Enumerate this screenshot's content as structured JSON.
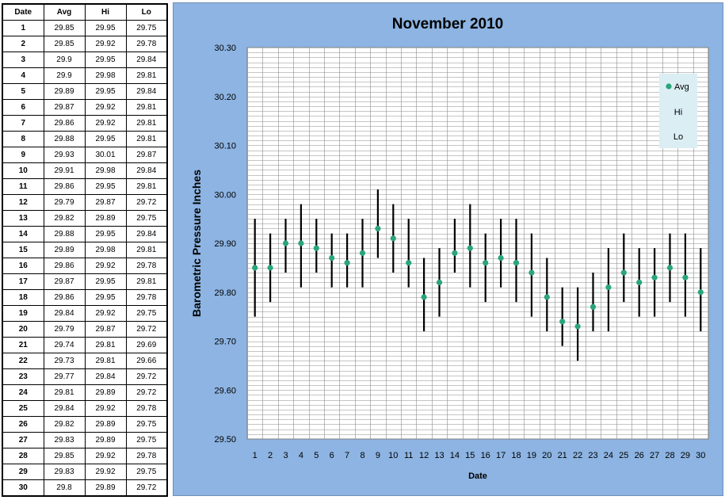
{
  "table": {
    "headers": [
      "Date",
      "Avg",
      "Hi",
      "Lo"
    ],
    "rows": [
      [
        "1",
        "29.85",
        "29.95",
        "29.75"
      ],
      [
        "2",
        "29.85",
        "29.92",
        "29.78"
      ],
      [
        "3",
        "29.9",
        "29.95",
        "29.84"
      ],
      [
        "4",
        "29.9",
        "29.98",
        "29.81"
      ],
      [
        "5",
        "29.89",
        "29.95",
        "29.84"
      ],
      [
        "6",
        "29.87",
        "29.92",
        "29.81"
      ],
      [
        "7",
        "29.86",
        "29.92",
        "29.81"
      ],
      [
        "8",
        "29.88",
        "29.95",
        "29.81"
      ],
      [
        "9",
        "29.93",
        "30.01",
        "29.87"
      ],
      [
        "10",
        "29.91",
        "29.98",
        "29.84"
      ],
      [
        "11",
        "29.86",
        "29.95",
        "29.81"
      ],
      [
        "12",
        "29.79",
        "29.87",
        "29.72"
      ],
      [
        "13",
        "29.82",
        "29.89",
        "29.75"
      ],
      [
        "14",
        "29.88",
        "29.95",
        "29.84"
      ],
      [
        "15",
        "29.89",
        "29.98",
        "29.81"
      ],
      [
        "16",
        "29.86",
        "29.92",
        "29.78"
      ],
      [
        "17",
        "29.87",
        "29.95",
        "29.81"
      ],
      [
        "18",
        "29.86",
        "29.95",
        "29.78"
      ],
      [
        "19",
        "29.84",
        "29.92",
        "29.75"
      ],
      [
        "20",
        "29.79",
        "29.87",
        "29.72"
      ],
      [
        "21",
        "29.74",
        "29.81",
        "29.69"
      ],
      [
        "22",
        "29.73",
        "29.81",
        "29.66"
      ],
      [
        "23",
        "29.77",
        "29.84",
        "29.72"
      ],
      [
        "24",
        "29.81",
        "29.89",
        "29.72"
      ],
      [
        "25",
        "29.84",
        "29.92",
        "29.78"
      ],
      [
        "26",
        "29.82",
        "29.89",
        "29.75"
      ],
      [
        "27",
        "29.83",
        "29.89",
        "29.75"
      ],
      [
        "28",
        "29.85",
        "29.92",
        "29.78"
      ],
      [
        "29",
        "29.83",
        "29.92",
        "29.75"
      ],
      [
        "30",
        "29.8",
        "29.89",
        "29.72"
      ]
    ]
  },
  "chart_data": {
    "type": "scatter",
    "title": "November 2010",
    "xlabel": "Date",
    "ylabel": "Barometric Pressure Inches",
    "x": [
      1,
      2,
      3,
      4,
      5,
      6,
      7,
      8,
      9,
      10,
      11,
      12,
      13,
      14,
      15,
      16,
      17,
      18,
      19,
      20,
      21,
      22,
      23,
      24,
      25,
      26,
      27,
      28,
      29,
      30
    ],
    "xticks": [
      "1",
      "2",
      "3",
      "4",
      "5",
      "6",
      "7",
      "8",
      "9",
      "10",
      "11",
      "12",
      "13",
      "14",
      "15",
      "16",
      "17",
      "18",
      "19",
      "20",
      "21",
      "22",
      "23",
      "24",
      "25",
      "26",
      "27",
      "28",
      "29",
      "30"
    ],
    "yticks": [
      "29.50",
      "29.60",
      "29.70",
      "29.80",
      "29.90",
      "30.00",
      "30.10",
      "30.20",
      "30.30"
    ],
    "ylim": [
      29.5,
      30.3
    ],
    "grid": true,
    "legend_position": "top-right",
    "series": [
      {
        "name": "Avg",
        "color": "#2aa57a",
        "values": [
          29.85,
          29.85,
          29.9,
          29.9,
          29.89,
          29.87,
          29.86,
          29.88,
          29.93,
          29.91,
          29.86,
          29.79,
          29.82,
          29.88,
          29.89,
          29.86,
          29.87,
          29.86,
          29.84,
          29.79,
          29.74,
          29.73,
          29.77,
          29.81,
          29.84,
          29.82,
          29.83,
          29.85,
          29.83,
          29.8
        ]
      },
      {
        "name": "Hi",
        "values": [
          29.95,
          29.92,
          29.95,
          29.98,
          29.95,
          29.92,
          29.92,
          29.95,
          30.01,
          29.98,
          29.95,
          29.87,
          29.89,
          29.95,
          29.98,
          29.92,
          29.95,
          29.95,
          29.92,
          29.87,
          29.81,
          29.81,
          29.84,
          29.89,
          29.92,
          29.89,
          29.89,
          29.92,
          29.92,
          29.89
        ]
      },
      {
        "name": "Lo",
        "values": [
          29.75,
          29.78,
          29.84,
          29.81,
          29.84,
          29.81,
          29.81,
          29.81,
          29.87,
          29.84,
          29.81,
          29.72,
          29.75,
          29.84,
          29.81,
          29.78,
          29.81,
          29.78,
          29.75,
          29.72,
          29.69,
          29.66,
          29.72,
          29.72,
          29.78,
          29.75,
          29.75,
          29.78,
          29.75,
          29.72
        ]
      }
    ]
  },
  "colors": {
    "panel_background": "#8db4e2",
    "plot_background": "#ffffff",
    "legend_background": "#dbeef3",
    "avg_marker": "#2aa57a",
    "range_bar": "#000000"
  }
}
